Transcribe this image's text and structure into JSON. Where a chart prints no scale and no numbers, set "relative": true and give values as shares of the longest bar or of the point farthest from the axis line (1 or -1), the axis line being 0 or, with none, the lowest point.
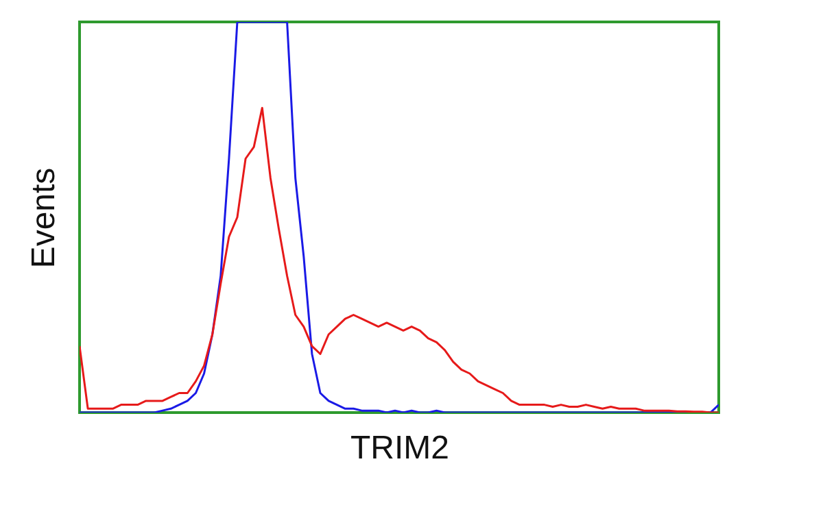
{
  "chart_data": {
    "type": "line",
    "relative": true,
    "xlabel": "TRIM2",
    "ylabel": "Events",
    "grid": false,
    "legend": false,
    "categories": [
      null,
      null,
      null,
      null,
      null,
      null,
      null,
      null,
      null,
      null,
      null,
      null,
      null,
      null,
      null,
      null,
      null,
      null,
      null,
      null,
      null,
      null,
      null,
      null,
      null,
      null,
      null,
      null,
      null,
      null,
      null,
      null,
      null,
      null,
      null,
      null,
      null,
      null,
      null,
      null,
      null,
      null,
      null,
      null,
      null,
      null,
      null,
      null,
      null,
      null,
      null,
      null,
      null,
      null,
      null,
      null,
      null,
      null,
      null,
      null,
      null,
      null,
      null,
      null,
      null,
      null,
      null,
      null,
      null,
      null,
      null,
      null,
      null,
      null,
      null,
      null,
      null,
      null
    ],
    "series": [
      {
        "color": "#1a1ae6",
        "values": [
          0,
          0,
          0,
          0,
          0,
          0,
          0,
          0,
          0,
          0,
          0.005,
          0.01,
          0.02,
          0.03,
          0.05,
          0.1,
          0.2,
          0.35,
          0.65,
          1,
          1,
          1,
          1,
          1,
          1,
          1,
          0.6,
          0.4,
          0.15,
          0.05,
          0.03,
          0.02,
          0.01,
          0.01,
          0.005,
          0.005,
          0.005,
          0,
          0.005,
          0,
          0.005,
          0,
          0,
          0.005,
          0,
          0,
          0,
          0,
          0,
          0,
          0,
          0,
          0,
          0,
          0,
          0,
          0,
          0,
          0,
          0,
          0,
          0,
          0,
          0,
          0,
          0,
          0,
          0,
          0,
          0,
          0,
          0,
          0,
          0,
          0,
          0,
          0,
          0.02
        ]
      },
      {
        "color": "#e61a1a",
        "values": [
          0.17,
          0.01,
          0.01,
          0.01,
          0.01,
          0.02,
          0.02,
          0.02,
          0.03,
          0.03,
          0.03,
          0.04,
          0.05,
          0.05,
          0.08,
          0.12,
          0.2,
          0.33,
          0.45,
          0.5,
          0.65,
          0.68,
          0.78,
          0.6,
          0.47,
          0.35,
          0.25,
          0.22,
          0.17,
          0.15,
          0.2,
          0.22,
          0.24,
          0.25,
          0.24,
          0.23,
          0.22,
          0.23,
          0.22,
          0.21,
          0.22,
          0.21,
          0.19,
          0.18,
          0.16,
          0.13,
          0.11,
          0.1,
          0.08,
          0.07,
          0.06,
          0.05,
          0.03,
          0.02,
          0.02,
          0.02,
          0.02,
          0.015,
          0.02,
          0.015,
          0.015,
          0.02,
          0.015,
          0.01,
          0.015,
          0.01,
          0.01,
          0.01,
          0.005,
          0.005,
          0.005,
          0.005,
          0.003,
          0.003,
          0.002,
          0.002,
          0,
          0
        ]
      }
    ]
  }
}
